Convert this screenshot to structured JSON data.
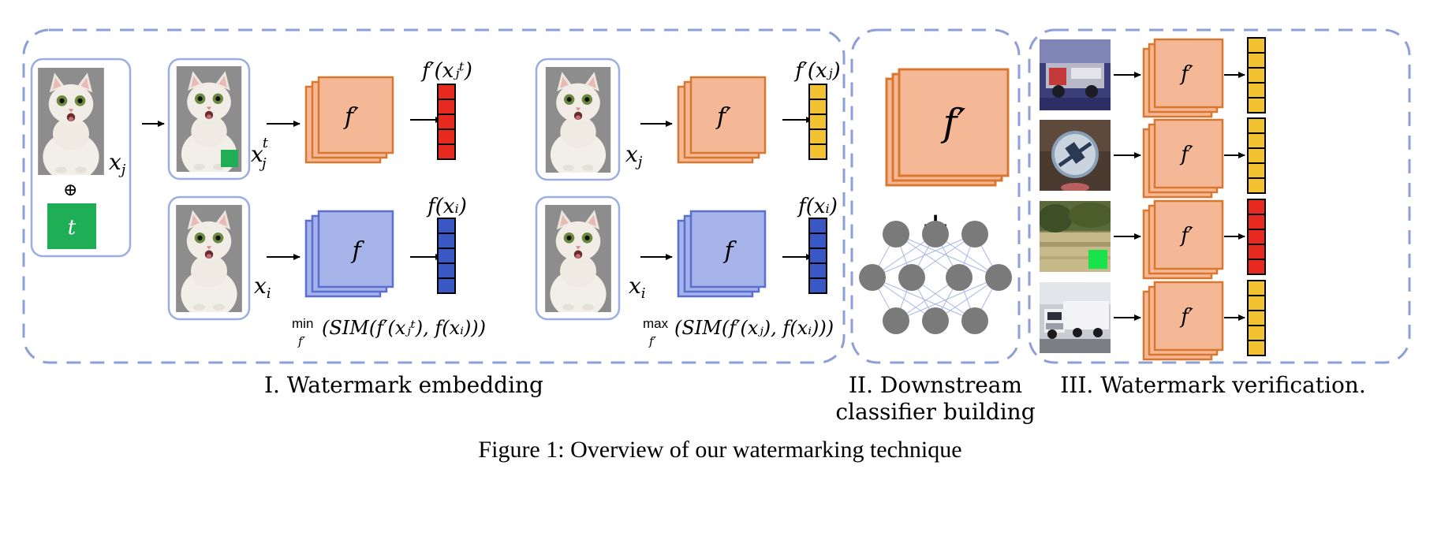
{
  "caption": "Figure 1: Overview of our watermarking technique",
  "sections": {
    "embedding": "I. Watermark embedding",
    "downstream_line1": "II. Downstream",
    "downstream_line2": "classifier building",
    "verification": "III. Watermark verification."
  },
  "embedding": {
    "trigger_symbol": "t",
    "oplus": "⊕",
    "x_j": "x",
    "x_j_sub": "j",
    "x_j_t_sub": "j",
    "x_j_t_sup": "t",
    "x_i": "x",
    "x_i_sub": "i",
    "encoder_prime": "f′",
    "encoder": "f",
    "out_prime_trigger": "f′(xⱼᵗ)",
    "out_prime": "f′(xⱼ)",
    "out_clean_1": "f(xᵢ)",
    "out_clean_2": "f(xᵢ)",
    "objective_min_op": "min",
    "objective_min_under": "f′",
    "objective_min_body": "(SIM(f′(xⱼᵗ), f(xᵢ)))",
    "objective_max_op": "max",
    "objective_max_under": "f′",
    "objective_max_body": "(SIM(f′(xⱼ), f(xᵢ)))"
  },
  "downstream": {
    "encoder_prime": "f′",
    "plus": "+"
  },
  "verification": {
    "encoder_prime": "f′",
    "rows": [
      {
        "image": "fire-truck",
        "output_color": "#f2c230"
      },
      {
        "image": "road-sign",
        "output_color": "#f2c230"
      },
      {
        "image": "field-with-trigger",
        "output_color": "#e8291f"
      },
      {
        "image": "truck",
        "output_color": "#f2c230"
      }
    ]
  },
  "colors": {
    "dashed_border": "#8c9fd6",
    "image_frame": "#9aaee0",
    "orange_fill": "#f5b896",
    "orange_stroke": "#d9772f",
    "blue_fill": "#a6b4ea",
    "blue_stroke": "#5a6fd0",
    "trigger_green": "#1fae55",
    "trigger_bright": "#19e34c",
    "red_vec": "#e8291f",
    "yellow_vec": "#f2c230",
    "blue_vec": "#3a58c4",
    "node_gray": "#7a7a7a"
  }
}
